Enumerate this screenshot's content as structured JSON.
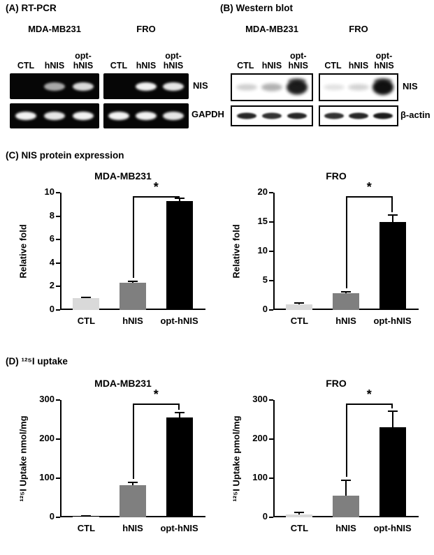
{
  "panel_a": {
    "title": "(A) RT-PCR",
    "groups": [
      {
        "name": "MDA-MB231",
        "lanes": [
          "CTL",
          "hNIS",
          "opt-\nhNIS"
        ]
      },
      {
        "name": "FRO",
        "lanes": [
          "CTL",
          "hNIS",
          "opt-\nhNIS"
        ]
      }
    ],
    "rows": [
      {
        "label": "NIS",
        "bands": [
          [
            0,
            0.65,
            0.85
          ],
          [
            0,
            0.95,
            0.9
          ]
        ]
      },
      {
        "label": "GAPDH",
        "bands": [
          [
            0.95,
            0.9,
            0.95
          ],
          [
            0.95,
            0.95,
            0.9
          ]
        ]
      }
    ],
    "gel_style": {
      "bg": "#060606",
      "band": "#ffffff"
    }
  },
  "panel_b": {
    "title": "(B) Western blot",
    "groups": [
      {
        "name": "MDA-MB231",
        "lanes": [
          "CTL",
          "hNIS",
          "opt-\nhNIS"
        ]
      },
      {
        "name": "FRO",
        "lanes": [
          "CTL",
          "hNIS",
          "opt-\nhNIS"
        ]
      }
    ],
    "rows": [
      {
        "label": "NIS",
        "bands": [
          [
            0.2,
            0.32,
            0.95
          ],
          [
            0.12,
            0.18,
            1
          ]
        ]
      },
      {
        "label": "β-actin",
        "bands": [
          [
            0.9,
            0.85,
            0.9
          ],
          [
            0.85,
            0.9,
            0.95
          ]
        ]
      }
    ],
    "gel_style": {
      "bg": "#ffffff",
      "band": "#101010",
      "border": "#000000"
    }
  },
  "panel_c": {
    "title": "(C) NIS protein expression"
  },
  "panel_d": {
    "title": "(D) ¹²⁵I uptake"
  },
  "colors": {
    "ctl_bar": "#d9d9d9",
    "hnis_bar": "#7f7f7f",
    "opt_bar": "#000000",
    "axis": "#000000"
  },
  "chart_data": [
    {
      "id": "c-left",
      "type": "bar",
      "title": "MDA-MB231",
      "ylabel": "Relative fold",
      "xlabel": "",
      "ylim": [
        0,
        10
      ],
      "yticks": [
        0,
        2,
        4,
        6,
        8,
        10
      ],
      "grid": false,
      "legend": false,
      "categories": [
        "CTL",
        "hNIS",
        "opt-hNIS"
      ],
      "values": [
        1.0,
        2.35,
        9.3
      ],
      "errors": [
        0.08,
        0.1,
        0.2
      ],
      "colors": [
        "#d9d9d9",
        "#7f7f7f",
        "#000000"
      ],
      "significance": {
        "from": 1,
        "to": 2,
        "label": "*"
      }
    },
    {
      "id": "c-right",
      "type": "bar",
      "title": "FRO",
      "ylabel": "Relative fold",
      "xlabel": "",
      "ylim": [
        0,
        20
      ],
      "yticks": [
        0,
        5,
        10,
        15,
        20
      ],
      "grid": false,
      "legend": false,
      "categories": [
        "CTL",
        "hNIS",
        "opt-hNIS"
      ],
      "values": [
        1.0,
        2.8,
        15.0
      ],
      "errors": [
        0.15,
        0.3,
        1.2
      ],
      "colors": [
        "#d9d9d9",
        "#7f7f7f",
        "#000000"
      ],
      "significance": {
        "from": 1,
        "to": 2,
        "label": "*"
      }
    },
    {
      "id": "d-left",
      "type": "bar",
      "title": "MDA-MB231",
      "ylabel": "¹²⁵I Uptake nmol/mg",
      "xlabel": "",
      "ylim": [
        0,
        300
      ],
      "yticks": [
        0,
        100,
        200,
        300
      ],
      "grid": false,
      "legend": false,
      "categories": [
        "CTL",
        "hNIS",
        "opt-hNIS"
      ],
      "values": [
        2,
        83,
        255
      ],
      "errors": [
        1,
        6,
        13
      ],
      "colors": [
        "#d9d9d9",
        "#7f7f7f",
        "#000000"
      ],
      "significance": {
        "from": 1,
        "to": 2,
        "label": "*"
      }
    },
    {
      "id": "d-right",
      "type": "bar",
      "title": "FRO",
      "ylabel": "¹²⁵I Uptake pmol/mg",
      "xlabel": "",
      "ylim": [
        0,
        300
      ],
      "yticks": [
        0,
        100,
        200,
        300
      ],
      "grid": false,
      "legend": false,
      "categories": [
        "CTL",
        "hNIS",
        "opt-hNIS"
      ],
      "values": [
        8,
        55,
        230
      ],
      "errors": [
        4,
        40,
        42
      ],
      "colors": [
        "#d9d9d9",
        "#7f7f7f",
        "#000000"
      ],
      "significance": {
        "from": 1,
        "to": 2,
        "label": "*"
      }
    }
  ]
}
